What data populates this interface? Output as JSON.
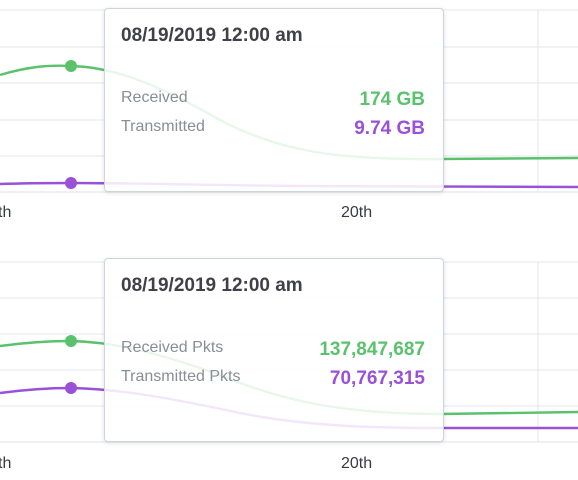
{
  "colors": {
    "received": "#5ac26d",
    "transmitted": "#9951d8",
    "grid": "#e3e6eb"
  },
  "charts": [
    {
      "tooltip": {
        "date": "08/19/2019 12:00 am",
        "rows": [
          {
            "label": "Received",
            "value": "174 GB"
          },
          {
            "label": "Transmitted",
            "value": "9.74 GB"
          }
        ]
      },
      "x_ticks": [
        "th",
        "20th"
      ]
    },
    {
      "tooltip": {
        "date": "08/19/2019 12:00 am",
        "rows": [
          {
            "label": "Received Pkts",
            "value": "137,847,687"
          },
          {
            "label": "Transmitted Pkts",
            "value": "70,767,315"
          }
        ]
      },
      "x_ticks": [
        "th",
        "20th"
      ]
    }
  ],
  "chart_data": [
    {
      "type": "line",
      "title": "",
      "x": [
        "08/19/2019 12:00 am"
      ],
      "series": [
        {
          "name": "Received",
          "values": [
            174
          ],
          "unit": "GB"
        },
        {
          "name": "Transmitted",
          "values": [
            9.74
          ],
          "unit": "GB"
        }
      ],
      "tick_labels": [
        "th",
        "20th"
      ],
      "grid": true
    },
    {
      "type": "line",
      "title": "",
      "x": [
        "08/19/2019 12:00 am"
      ],
      "series": [
        {
          "name": "Received Pkts",
          "values": [
            137847687
          ]
        },
        {
          "name": "Transmitted Pkts",
          "values": [
            70767315
          ]
        }
      ],
      "tick_labels": [
        "th",
        "20th"
      ],
      "grid": true
    }
  ]
}
